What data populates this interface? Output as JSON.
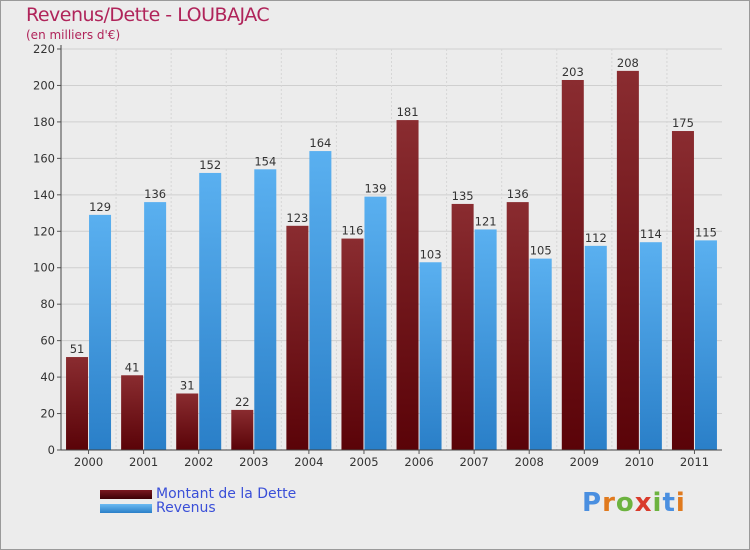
{
  "chart_data": {
    "type": "bar",
    "title": "Revenus/Dette - LOUBAJAC",
    "subtitle": "(en milliers d'€)",
    "categories": [
      "2000",
      "2001",
      "2002",
      "2003",
      "2004",
      "2005",
      "2006",
      "2007",
      "2008",
      "2009",
      "2010",
      "2011"
    ],
    "series": [
      {
        "name": "Montant de la Dette",
        "color": "#7a1e22",
        "values": [
          51,
          41,
          31,
          22,
          123,
          116,
          181,
          135,
          136,
          203,
          208,
          175
        ]
      },
      {
        "name": "Revenus",
        "color": "#4aa3e6",
        "values": [
          129,
          136,
          152,
          154,
          164,
          139,
          103,
          121,
          105,
          112,
          114,
          115
        ]
      }
    ],
    "ylim": [
      0,
      220
    ],
    "yticks": [
      0,
      20,
      40,
      60,
      80,
      100,
      120,
      140,
      160,
      180,
      200,
      220
    ],
    "grid": true,
    "legend_position": "bottom-left"
  },
  "legend": {
    "items": [
      {
        "label": "Montant de la Dette",
        "color": "#6b0a12"
      },
      {
        "label": "Revenus",
        "color": "#3f8fe0"
      }
    ]
  },
  "brand": {
    "letters": [
      "P",
      "r",
      "o",
      "x",
      "i",
      "t",
      "i"
    ],
    "colors": [
      "#4a8fe0",
      "#e07a1e",
      "#6cb33f",
      "#d93b2b",
      "#6cb33f",
      "#4a8fe0",
      "#e07a1e"
    ]
  }
}
